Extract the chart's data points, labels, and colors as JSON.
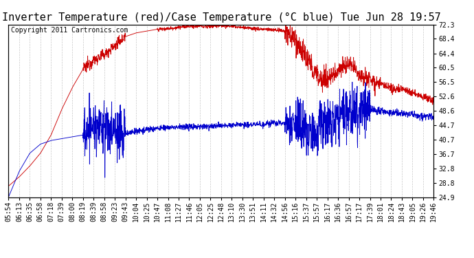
{
  "title": "Inverter Temperature (red)/Case Temperature (°C blue) Tue Jun 28 19:57",
  "copyright": "Copyright 2011 Cartronics.com",
  "ylabel_right_ticks": [
    24.9,
    28.8,
    32.8,
    36.7,
    40.7,
    44.7,
    48.6,
    52.6,
    56.5,
    60.5,
    64.4,
    68.4,
    72.3
  ],
  "ylim": [
    24.9,
    72.3
  ],
  "background_color": "#ffffff",
  "plot_bg_color": "#ffffff",
  "grid_color": "#c8c8c8",
  "red_color": "#cc0000",
  "blue_color": "#0000cc",
  "title_fontsize": 11,
  "copyright_fontsize": 7,
  "tick_fontsize": 7,
  "x_tick_labels": [
    "05:54",
    "06:13",
    "06:35",
    "06:58",
    "07:18",
    "07:39",
    "08:00",
    "08:19",
    "08:39",
    "08:58",
    "09:23",
    "09:43",
    "10:04",
    "10:25",
    "10:47",
    "11:08",
    "11:27",
    "11:46",
    "12:05",
    "12:25",
    "12:48",
    "13:10",
    "13:30",
    "13:51",
    "14:11",
    "14:32",
    "14:56",
    "15:16",
    "15:37",
    "15:57",
    "16:17",
    "16:36",
    "16:57",
    "17:17",
    "17:39",
    "18:01",
    "18:24",
    "18:43",
    "19:05",
    "19:26",
    "19:46"
  ]
}
